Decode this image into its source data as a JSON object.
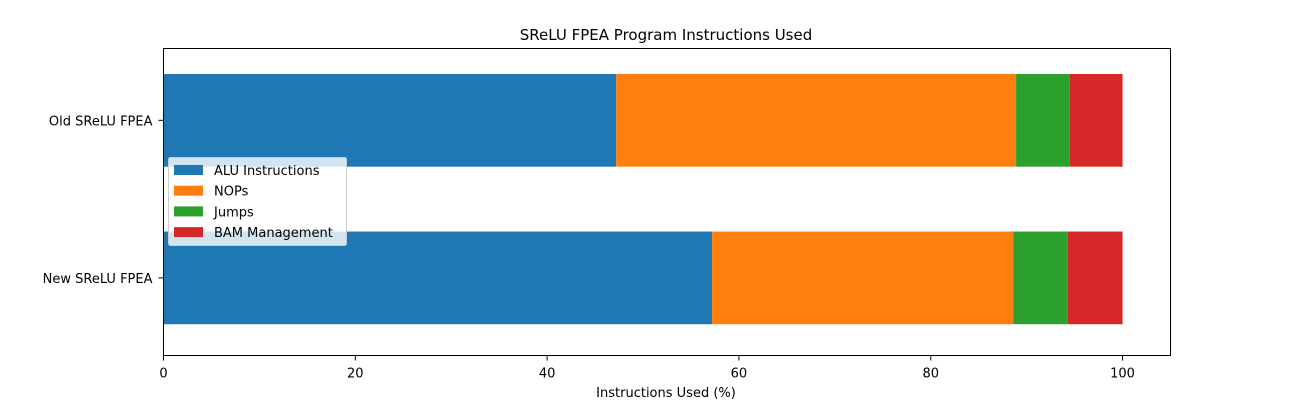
{
  "chart_data": {
    "type": "bar",
    "orientation": "horizontal",
    "stacked": true,
    "title": "SReLU FPEA Program Instructions Used",
    "xlabel": "Instructions Used (%)",
    "ylabel": "",
    "xlim": [
      0,
      105
    ],
    "xticks": [
      0,
      20,
      40,
      60,
      80,
      100
    ],
    "grid": false,
    "legend_position": "center-left",
    "categories": [
      "Old SReLU FPEA",
      "New SReLU FPEA"
    ],
    "series": [
      {
        "name": "ALU Instructions",
        "color": "#1f77b4",
        "values": [
          47.2,
          57.2
        ]
      },
      {
        "name": "NOPs",
        "color": "#ff7f0e",
        "values": [
          41.7,
          31.4
        ]
      },
      {
        "name": "Jumps",
        "color": "#2ca02c",
        "values": [
          5.6,
          5.7
        ]
      },
      {
        "name": "BAM Management",
        "color": "#d62728",
        "values": [
          5.5,
          5.7
        ]
      }
    ]
  }
}
